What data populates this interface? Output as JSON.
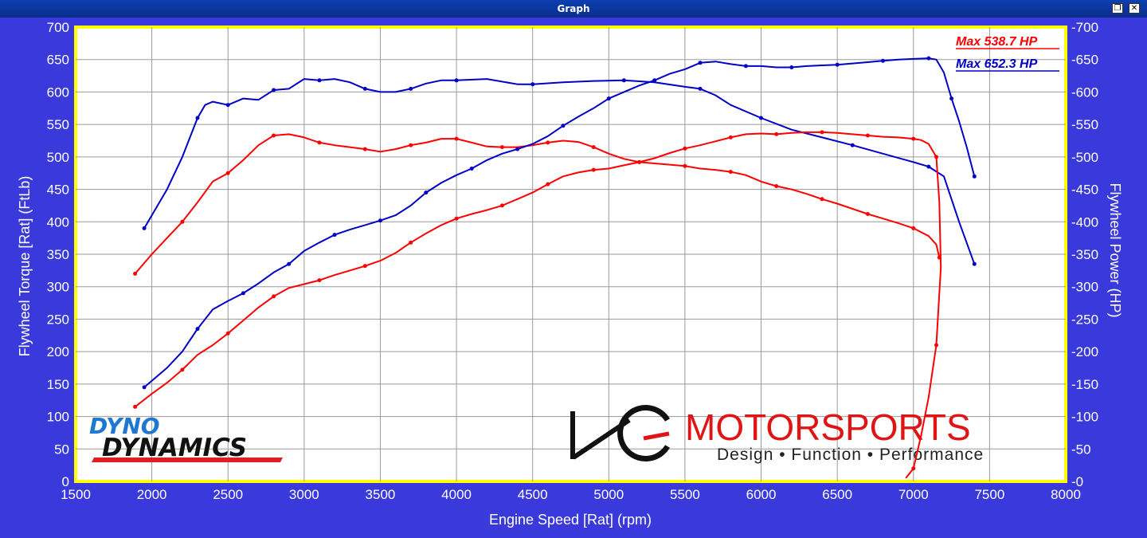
{
  "window": {
    "title": "Graph",
    "restore_glyph": "❐",
    "close_glyph": "✕"
  },
  "colors": {
    "background": "#3a3adc",
    "plot_area": "#ffffff",
    "plot_border": "#ffff00",
    "torque_color": "#ff0000",
    "power_color": "#0000c8"
  },
  "logos": {
    "dyno_top": "DYNO",
    "dyno_bottom": "DYNAMICS",
    "hg_mark": "HG",
    "hg_name": "MOTORSPORTS",
    "hg_tagline": "Design • Function • Performance"
  },
  "chart_data": {
    "type": "line",
    "xlabel": "Engine Speed [Rat] (rpm)",
    "ylabel_left": "Flywheel Torque [Rat] (FtLb)",
    "ylabel_right": "Flywheel Power (HP)",
    "xlim": [
      1500,
      8000
    ],
    "ylim_left": [
      0,
      700
    ],
    "ylim_right": [
      0,
      700
    ],
    "xticks": [
      1500,
      2000,
      2500,
      3000,
      3500,
      4000,
      4500,
      5000,
      5500,
      6000,
      6500,
      7000,
      7500,
      8000
    ],
    "yticks_left": [
      0,
      50,
      100,
      150,
      200,
      250,
      300,
      350,
      400,
      450,
      500,
      550,
      600,
      650,
      700
    ],
    "yticks_right": [
      0,
      50,
      100,
      150,
      200,
      250,
      300,
      350,
      400,
      450,
      500,
      550,
      600,
      650,
      700
    ],
    "grid": true,
    "legend_position": "top-right",
    "legend": [
      {
        "text": "Max 538.7 HP",
        "color": "red"
      },
      {
        "text": "Max 652.3 HP",
        "color": "blue"
      }
    ],
    "series": [
      {
        "color": "#0000c8",
        "kind": "torque",
        "x": [
          1950,
          2100,
          2200,
          2300,
          2350,
          2400,
          2500,
          2600,
          2700,
          2800,
          2900,
          3000,
          3100,
          3200,
          3300,
          3400,
          3500,
          3600,
          3700,
          3800,
          3900,
          4000,
          4200,
          4400,
          4500,
          4700,
          4900,
          5100,
          5300,
          5500,
          5600,
          5700,
          5800,
          6000,
          6200,
          6400,
          6600,
          6800,
          7000,
          7100,
          7200,
          7300,
          7400
        ],
        "y": [
          390,
          450,
          500,
          560,
          580,
          585,
          580,
          590,
          588,
          603,
          605,
          620,
          618,
          620,
          615,
          605,
          600,
          600,
          605,
          613,
          618,
          618,
          620,
          612,
          612,
          615,
          617,
          618,
          615,
          608,
          605,
          595,
          580,
          560,
          542,
          530,
          518,
          505,
          492,
          485,
          470,
          400,
          335
        ]
      },
      {
        "color": "#ff0000",
        "kind": "torque",
        "x": [
          1890,
          2000,
          2100,
          2200,
          2300,
          2400,
          2500,
          2600,
          2700,
          2800,
          2900,
          3000,
          3100,
          3200,
          3300,
          3400,
          3500,
          3600,
          3700,
          3800,
          3900,
          4000,
          4100,
          4200,
          4300,
          4400,
          4500,
          4600,
          4700,
          4800,
          4900,
          5000,
          5100,
          5200,
          5300,
          5400,
          5500,
          5600,
          5700,
          5800,
          5900,
          6000,
          6100,
          6200,
          6300,
          6400,
          6500,
          6600,
          6700,
          6800,
          6900,
          7000,
          7100,
          7150,
          7170
        ],
        "y": [
          320,
          350,
          375,
          400,
          430,
          462,
          475,
          495,
          518,
          533,
          535,
          530,
          522,
          518,
          515,
          512,
          508,
          512,
          518,
          522,
          528,
          528,
          522,
          516,
          515,
          515,
          518,
          522,
          525,
          523,
          515,
          505,
          497,
          492,
          490,
          488,
          486,
          482,
          480,
          477,
          472,
          462,
          455,
          450,
          443,
          435,
          428,
          420,
          412,
          405,
          398,
          390,
          378,
          365,
          345
        ]
      },
      {
        "color": "#0000c8",
        "kind": "power",
        "x": [
          1950,
          2100,
          2200,
          2300,
          2400,
          2500,
          2600,
          2700,
          2800,
          2900,
          3000,
          3100,
          3200,
          3300,
          3400,
          3500,
          3600,
          3700,
          3800,
          3900,
          4000,
          4100,
          4200,
          4300,
          4400,
          4500,
          4600,
          4700,
          4800,
          4900,
          5000,
          5100,
          5200,
          5300,
          5400,
          5500,
          5600,
          5700,
          5800,
          5900,
          6000,
          6100,
          6200,
          6300,
          6400,
          6500,
          6600,
          6700,
          6800,
          6900,
          7000,
          7100,
          7150,
          7200,
          7250,
          7300,
          7350,
          7400
        ],
        "y": [
          145,
          175,
          200,
          235,
          265,
          278,
          290,
          305,
          322,
          335,
          355,
          368,
          380,
          388,
          395,
          402,
          410,
          425,
          445,
          460,
          472,
          482,
          495,
          505,
          512,
          520,
          532,
          548,
          562,
          575,
          590,
          600,
          610,
          618,
          628,
          635,
          645,
          647,
          643,
          640,
          640,
          638,
          638,
          640,
          641,
          642,
          644,
          646,
          648,
          650,
          651,
          652,
          650,
          630,
          590,
          555,
          515,
          470
        ]
      },
      {
        "color": "#ff0000",
        "kind": "power",
        "x": [
          1890,
          2000,
          2100,
          2200,
          2300,
          2400,
          2500,
          2600,
          2700,
          2800,
          2900,
          3000,
          3100,
          3200,
          3300,
          3400,
          3500,
          3600,
          3700,
          3800,
          3900,
          4000,
          4100,
          4200,
          4300,
          4400,
          4500,
          4600,
          4700,
          4800,
          4900,
          5000,
          5100,
          5200,
          5300,
          5400,
          5500,
          5600,
          5700,
          5800,
          5900,
          6000,
          6100,
          6200,
          6300,
          6400,
          6500,
          6600,
          6700,
          6800,
          6900,
          7000,
          7050,
          7100,
          7150,
          7170,
          7180,
          7150,
          7100,
          7050,
          7000,
          6950
        ],
        "y": [
          115,
          135,
          152,
          172,
          195,
          210,
          228,
          248,
          268,
          285,
          298,
          304,
          310,
          318,
          325,
          332,
          340,
          352,
          368,
          382,
          395,
          405,
          412,
          418,
          425,
          435,
          445,
          458,
          470,
          476,
          480,
          482,
          487,
          492,
          498,
          506,
          513,
          518,
          524,
          530,
          535,
          536,
          535,
          537,
          538,
          538,
          537,
          535,
          533,
          531,
          530,
          528,
          526,
          520,
          500,
          430,
          330,
          210,
          130,
          70,
          20,
          5
        ]
      }
    ]
  }
}
